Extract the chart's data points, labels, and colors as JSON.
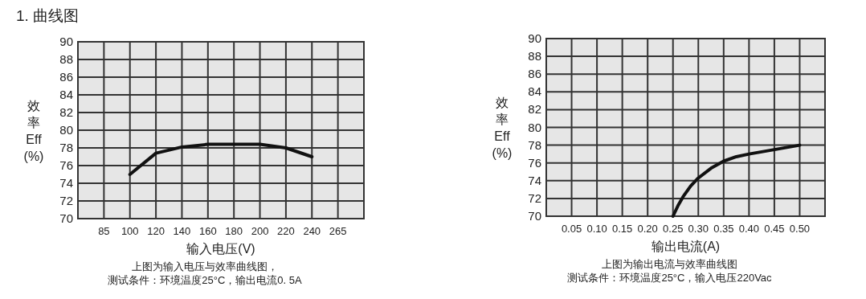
{
  "chart_data": [
    {
      "type": "line",
      "title": "1. 曲线图",
      "xlabel": "输入电压(V)",
      "ylabel": "效率\nEff\n(%)",
      "categories": [
        "85",
        "100",
        "120",
        "140",
        "160",
        "180",
        "200",
        "220",
        "240",
        "265"
      ],
      "series": [
        {
          "color": "#111111",
          "values": [
            null,
            75,
            77.4,
            78.1,
            78.4,
            78.4,
            78.4,
            78,
            77,
            null
          ]
        }
      ],
      "ylim": [
        70,
        90
      ],
      "yticks": [
        70,
        72,
        74,
        76,
        78,
        80,
        82,
        84,
        86,
        88,
        90
      ],
      "grid": true,
      "line_style": "solid",
      "annotations": [
        "上图为输入电压与效率曲线图，",
        "测试条件：环境温度25°C，输出电流0. 5A"
      ]
    },
    {
      "type": "line",
      "xlabel": "输出电流(A)",
      "ylabel": "效率\nEff\n(%)",
      "x": [
        0.25,
        0.26,
        0.27,
        0.285,
        0.3,
        0.325,
        0.35,
        0.375,
        0.4,
        0.45,
        0.5
      ],
      "series": [
        {
          "color": "#111111",
          "values": [
            70,
            71.2,
            72.2,
            73.4,
            74.3,
            75.4,
            76.2,
            76.7,
            77.0,
            77.5,
            78.0
          ]
        }
      ],
      "xlim": [
        0,
        0.55
      ],
      "xticks": [
        {
          "value": 0.05,
          "label": "0.05"
        },
        {
          "value": 0.1,
          "label": "0.10"
        },
        {
          "value": 0.15,
          "label": "0.15"
        },
        {
          "value": 0.2,
          "label": "0.20"
        },
        {
          "value": 0.25,
          "label": "0.25"
        },
        {
          "value": 0.3,
          "label": "0.30"
        },
        {
          "value": 0.35,
          "label": "0.35"
        },
        {
          "value": 0.4,
          "label": "0.40"
        },
        {
          "value": 0.45,
          "label": "0.45"
        },
        {
          "value": 0.5,
          "label": "0.50"
        }
      ],
      "ylim": [
        70,
        90
      ],
      "yticks": [
        70,
        72,
        74,
        76,
        78,
        80,
        82,
        84,
        86,
        88,
        90
      ],
      "grid": true,
      "line_style": "solid",
      "annotations": [
        "上图为输出电流与效率曲线图",
        "测试条件：环境温度25°C，输入电压220Vac"
      ]
    }
  ]
}
